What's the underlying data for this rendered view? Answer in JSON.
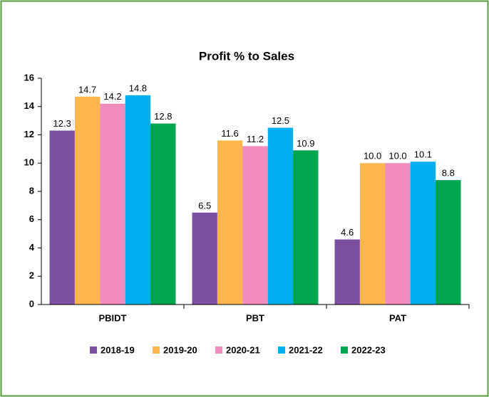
{
  "chart_data": {
    "type": "bar",
    "title": "Profit % to Sales",
    "categories": [
      "PBIDT",
      "PBT",
      "PAT"
    ],
    "series": [
      {
        "name": "2018-19",
        "color": "#7b4fa2",
        "values": [
          12.3,
          6.5,
          4.6
        ],
        "value_labels": [
          "12.3",
          "6.5",
          "4.6"
        ]
      },
      {
        "name": "2019-20",
        "color": "#ffb74d",
        "values": [
          14.7,
          11.6,
          10.0
        ],
        "value_labels": [
          "14.7",
          "11.6",
          "10.0"
        ]
      },
      {
        "name": "2020-21",
        "color": "#f28cbd",
        "values": [
          14.2,
          11.2,
          10.0
        ],
        "value_labels": [
          "14.2",
          "11.2",
          "10.0"
        ]
      },
      {
        "name": "2021-22",
        "color": "#00b0f0",
        "values": [
          14.8,
          12.5,
          10.1
        ],
        "value_labels": [
          "14.8",
          "12.5",
          "10.1"
        ]
      },
      {
        "name": "2022-23",
        "color": "#00a550",
        "values": [
          12.8,
          10.9,
          8.8
        ],
        "value_labels": [
          "12.8",
          "10.9",
          "8.8"
        ]
      }
    ],
    "ylim": [
      0,
      16
    ],
    "yticks": [
      0,
      2,
      4,
      6,
      8,
      10,
      12,
      14,
      16
    ],
    "legend": "bottom"
  }
}
